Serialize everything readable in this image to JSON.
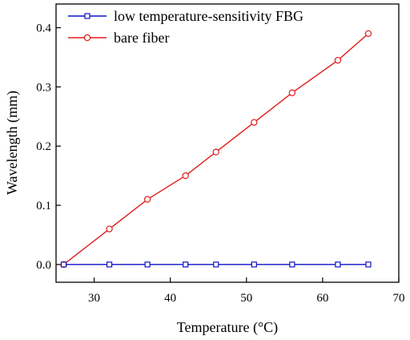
{
  "chart_data": {
    "type": "line",
    "xlabel": "Temperature (°C)",
    "ylabel": "Wavelength (mm)",
    "xlim": [
      25,
      70
    ],
    "ylim": [
      -0.03,
      0.44
    ],
    "xticks": [
      30,
      40,
      50,
      60,
      70
    ],
    "yticks": [
      0.0,
      0.1,
      0.2,
      0.3,
      0.4
    ],
    "xtick_labels": [
      "30",
      "40",
      "50",
      "60",
      "70"
    ],
    "ytick_labels": [
      "0.0",
      "0.1",
      "0.2",
      "0.3",
      "0.4"
    ],
    "legend_position": "top-left",
    "grid": false,
    "series": [
      {
        "name": "low temperature-sensitivity FBG",
        "color": "#1010c8",
        "marker": "square",
        "x": [
          26,
          32,
          37,
          42,
          46,
          51,
          56,
          62,
          66
        ],
        "y": [
          0,
          0,
          0,
          0,
          0,
          0,
          0,
          0,
          0
        ]
      },
      {
        "name": "bare fiber",
        "color": "#e01b1b",
        "marker": "circle",
        "x": [
          26,
          32,
          37,
          42,
          46,
          51,
          56,
          62,
          66
        ],
        "y": [
          0,
          0.06,
          0.11,
          0.15,
          0.19,
          0.24,
          0.29,
          0.345,
          0.39
        ]
      }
    ]
  }
}
